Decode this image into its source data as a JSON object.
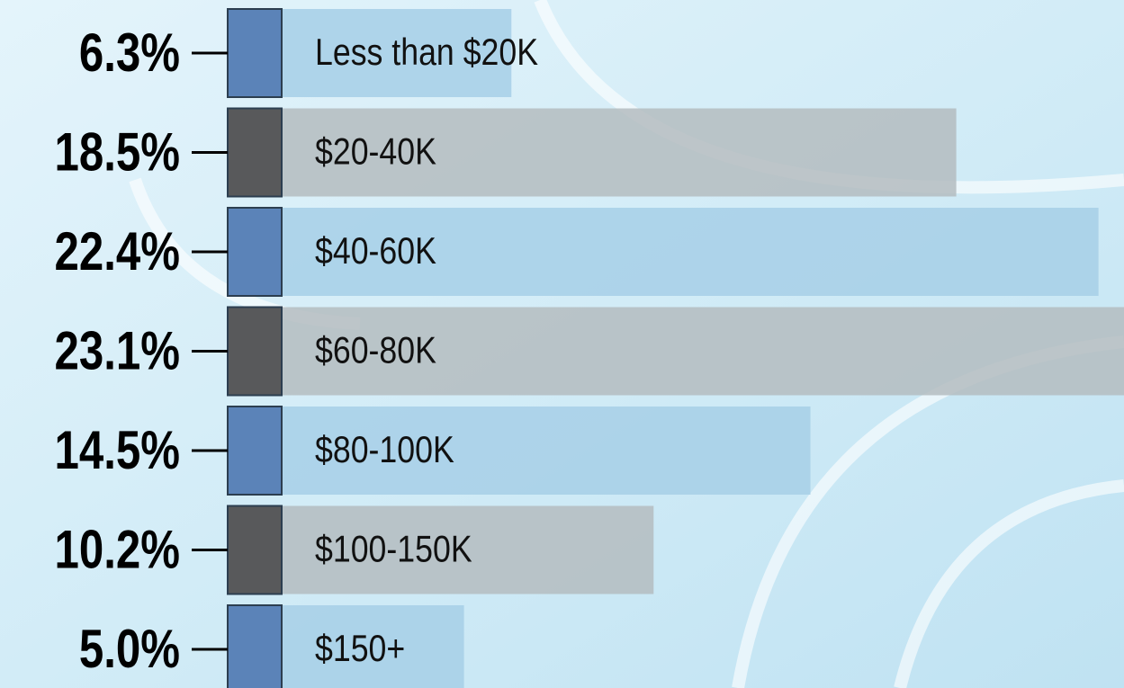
{
  "chart_data": {
    "type": "bar",
    "orientation": "horizontal",
    "categories": [
      "Less than $20K",
      "$20-40K",
      "$40-60K",
      "$60-80K",
      "$80-100K",
      "$100-150K",
      "$150+"
    ],
    "values": [
      6.3,
      18.5,
      22.4,
      23.1,
      14.5,
      10.2,
      5.0
    ],
    "value_labels": [
      "6.3%",
      "18.5%",
      "22.4%",
      "23.1%",
      "14.5%",
      "10.2%",
      "5.0%"
    ],
    "colors": [
      "#5b83b8",
      "#58595b",
      "#5b83b8",
      "#58595b",
      "#5b83b8",
      "#58595b",
      "#5b83b8"
    ]
  }
}
